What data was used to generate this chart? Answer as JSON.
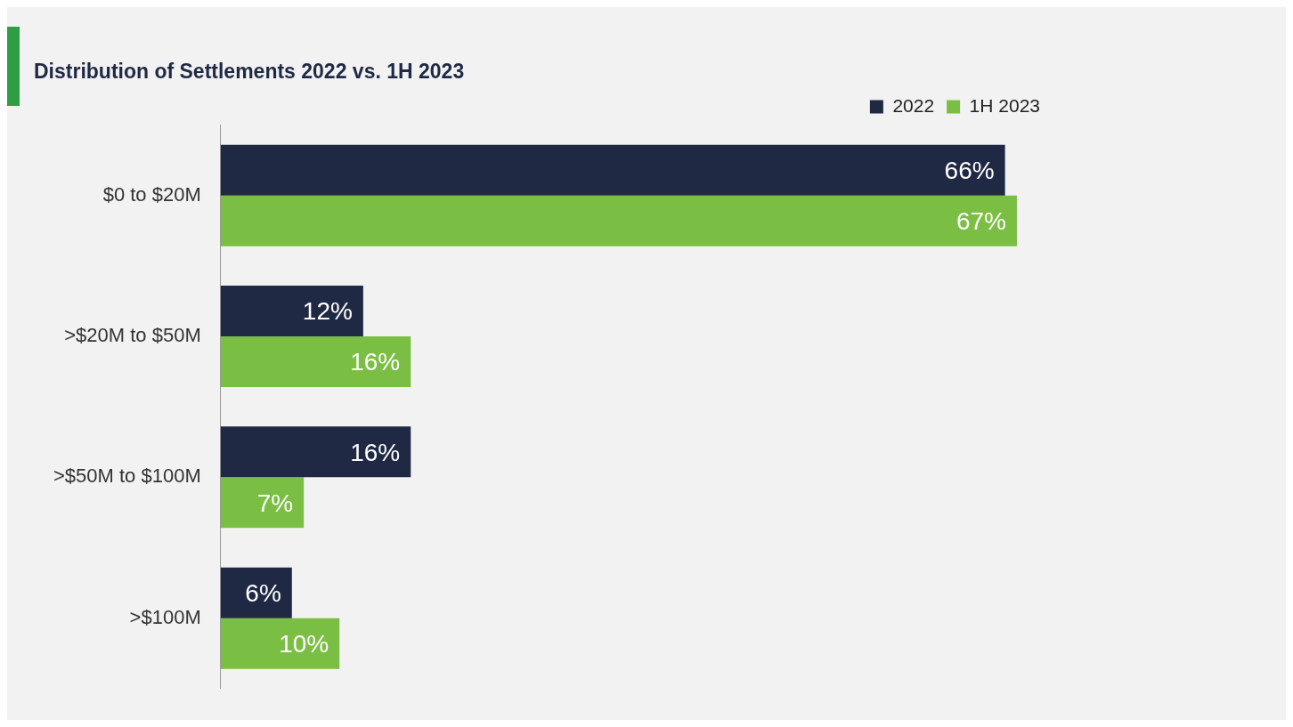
{
  "chart_data": {
    "type": "bar",
    "orientation": "horizontal",
    "title": "Distribution of Settlements 2022 vs. 1H 2023",
    "categories": [
      "$0 to $20M",
      ">$20M to $50M",
      ">$50M to $100M",
      ">$100M"
    ],
    "series": [
      {
        "name": "2022",
        "color": "#1f2944",
        "values": [
          66,
          12,
          16,
          6
        ],
        "value_labels": [
          "66%",
          "12%",
          "16%",
          "6%"
        ]
      },
      {
        "name": "1H 2023",
        "color": "#7abf43",
        "values": [
          67,
          16,
          7,
          10
        ],
        "value_labels": [
          "67%",
          "16%",
          "7%",
          "10%"
        ]
      }
    ],
    "grid": false,
    "legend": "top right",
    "tick_labels": "y"
  }
}
